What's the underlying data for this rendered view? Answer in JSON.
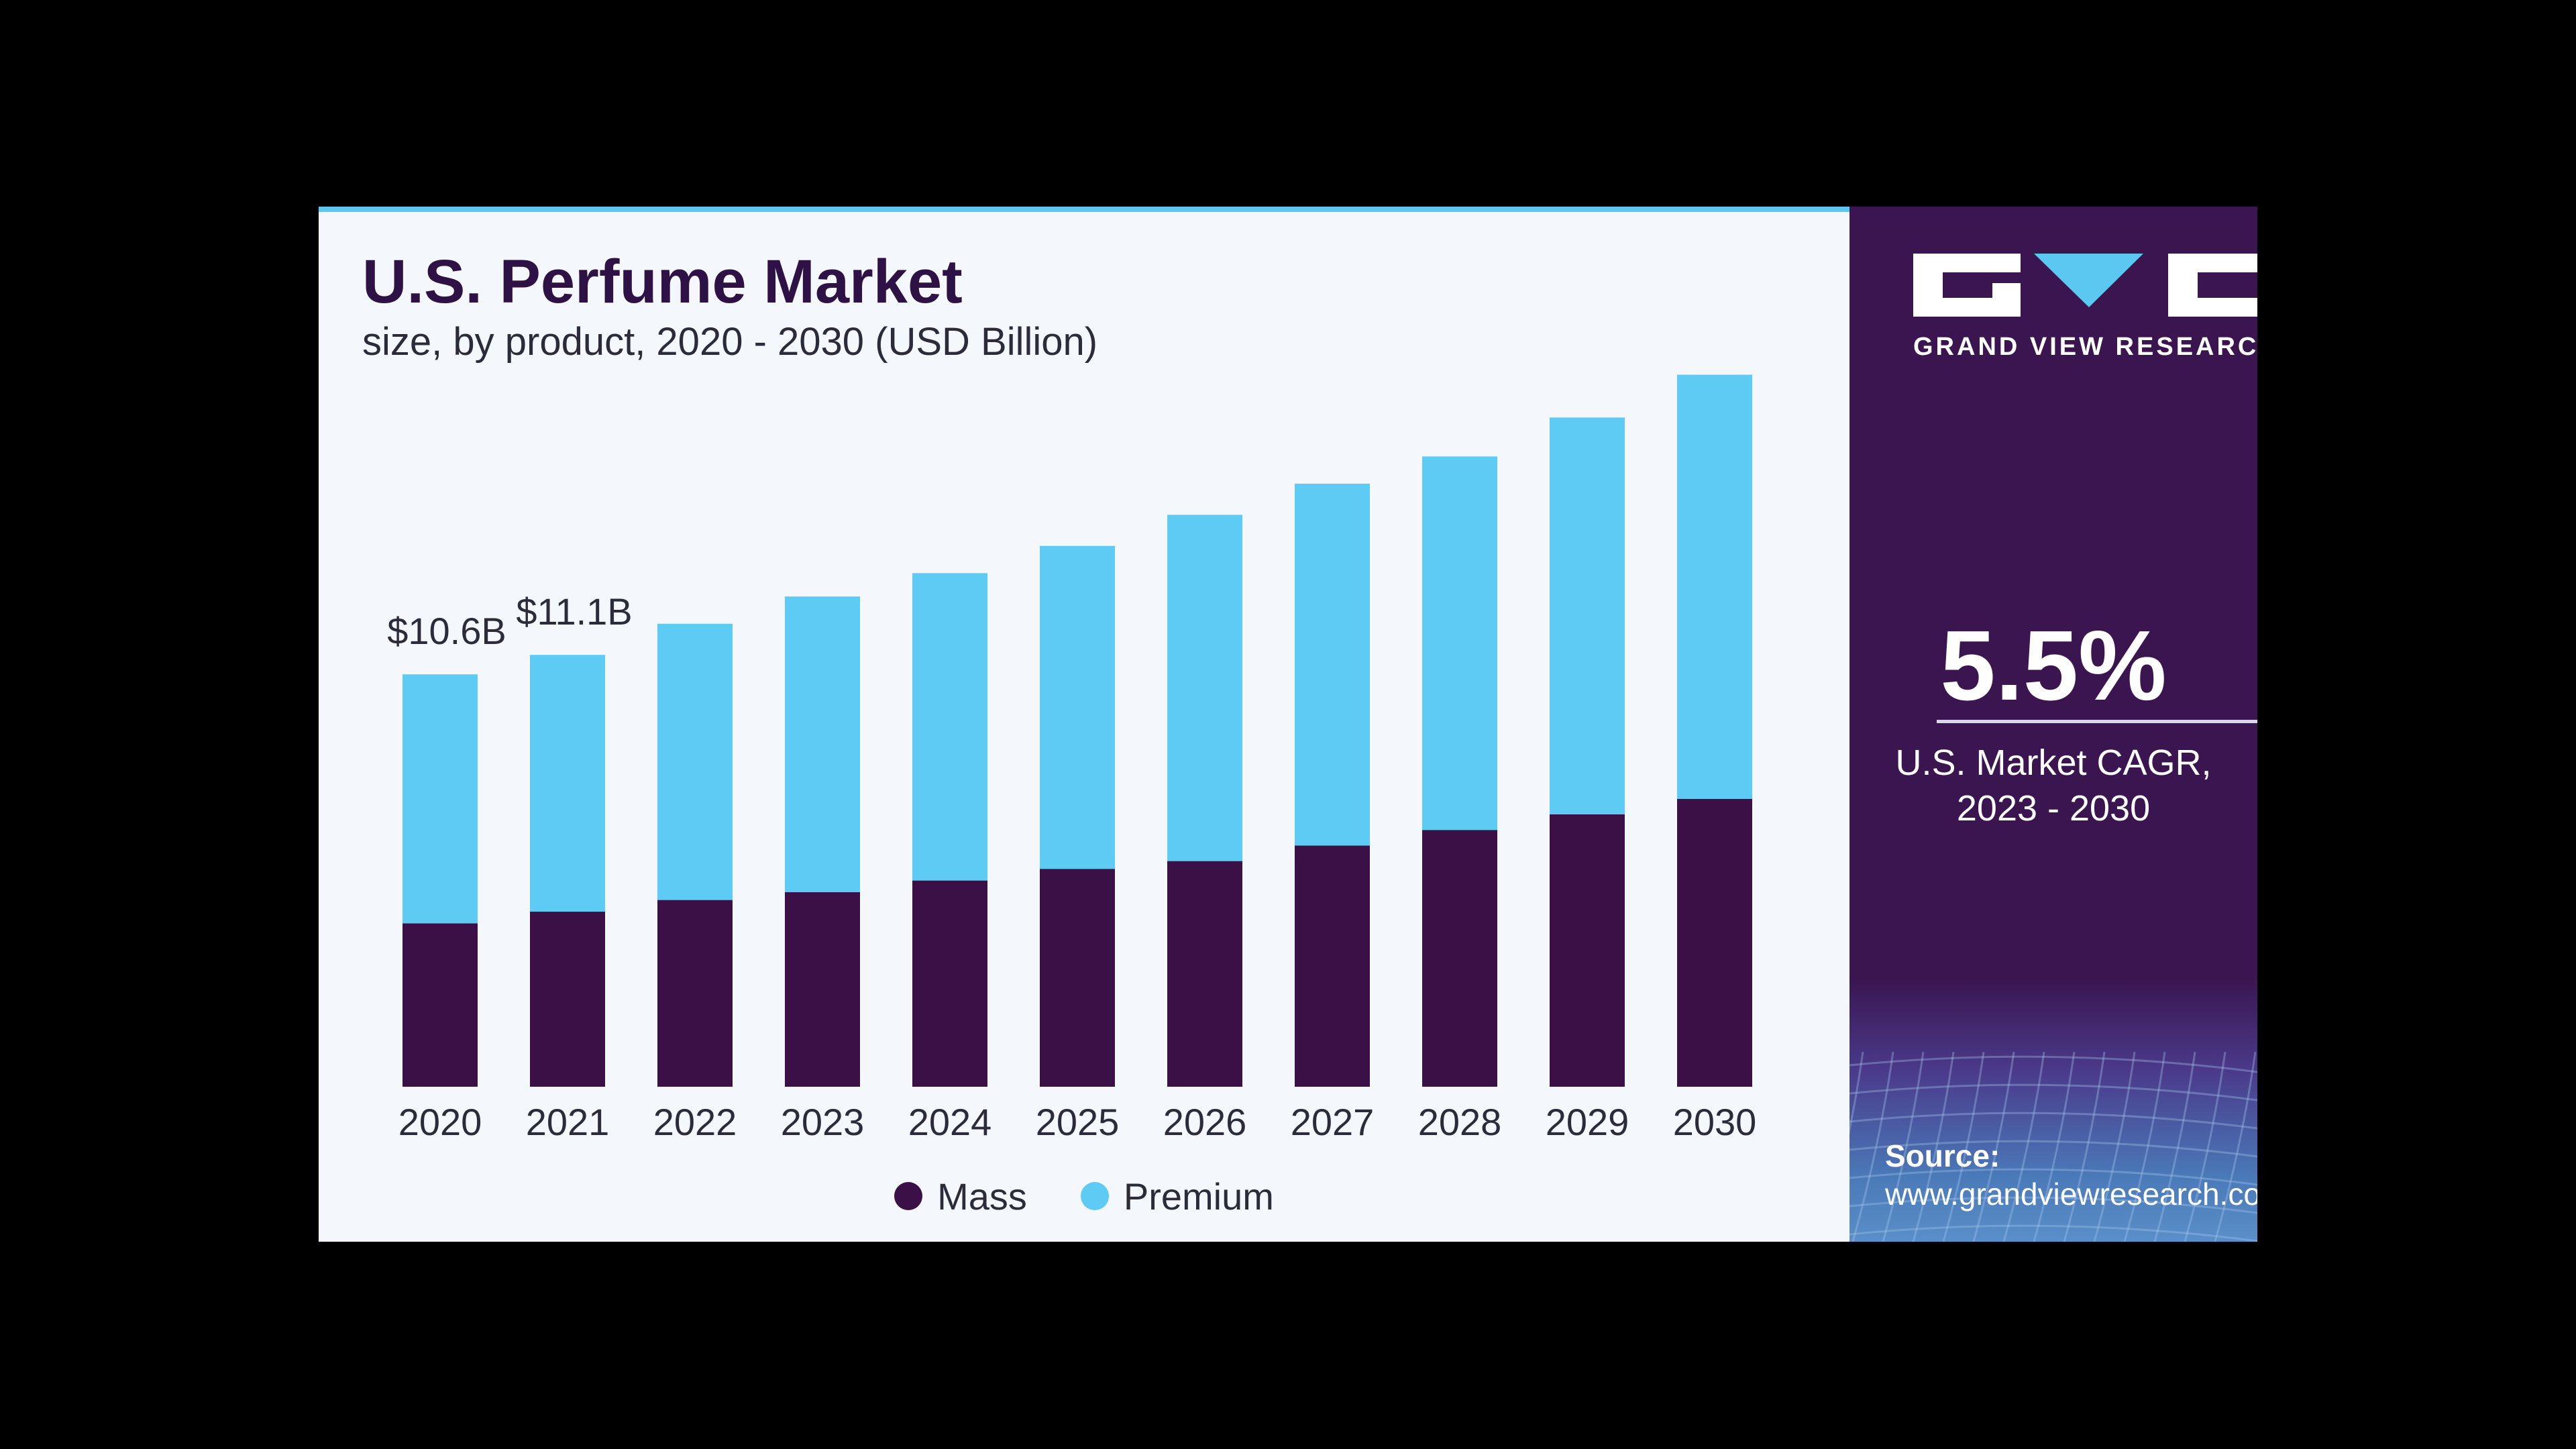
{
  "header": {
    "title": "U.S. Perfume Market",
    "subtitle": "size, by product, 2020 - 2030 (USD Billion)"
  },
  "colors": {
    "mass": "#3a1046",
    "premium": "#5ecbf5",
    "panel": "#3a1550",
    "accent": "#5ac8f0"
  },
  "chart_data": {
    "type": "bar",
    "stacked": true,
    "categories": [
      "2020",
      "2021",
      "2022",
      "2023",
      "2024",
      "2025",
      "2026",
      "2027",
      "2028",
      "2029",
      "2030"
    ],
    "series": [
      {
        "name": "Mass",
        "values": [
          4.2,
          4.5,
          4.8,
          5.0,
          5.3,
          5.6,
          5.8,
          6.2,
          6.6,
          7.0,
          7.4
        ]
      },
      {
        "name": "Premium",
        "values": [
          6.4,
          6.6,
          7.1,
          7.6,
          7.9,
          8.3,
          8.9,
          9.3,
          9.6,
          10.2,
          10.9
        ]
      }
    ],
    "totals": [
      10.6,
      11.1,
      11.9,
      12.6,
      13.2,
      13.9,
      14.7,
      15.5,
      16.2,
      17.2,
      18.3
    ],
    "data_labels": [
      {
        "category": "2020",
        "text": "$10.6B"
      },
      {
        "category": "2021",
        "text": "$11.1B"
      }
    ],
    "ylim": [
      0,
      20
    ],
    "grid": false,
    "legend": "bottom-center",
    "xlabel": "",
    "ylabel": ""
  },
  "legend": {
    "items": [
      {
        "label": "Mass",
        "color": "#3a1046"
      },
      {
        "label": "Premium",
        "color": "#5ecbf5"
      }
    ]
  },
  "side_panel": {
    "logo_text": "GRAND VIEW RESEARCH",
    "cagr_value": "5.5%",
    "cagr_label_line1": "U.S. Market CAGR,",
    "cagr_label_line2": "2023 - 2030",
    "source_label": "Source:",
    "source_url": "www.grandviewresearch.com"
  }
}
